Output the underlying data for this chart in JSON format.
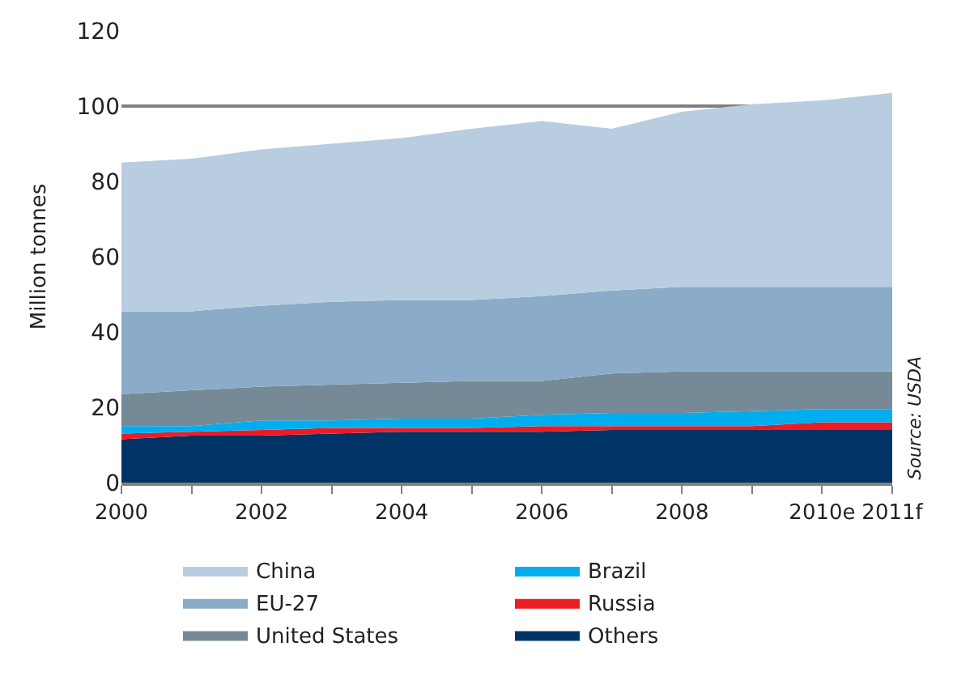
{
  "chart_data": {
    "type": "area",
    "stacked": true,
    "ylabel": "Million tonnes",
    "x": [
      2000,
      2001,
      2002,
      2003,
      2004,
      2005,
      2006,
      2007,
      2008,
      2009,
      2010,
      2011
    ],
    "series": [
      {
        "name": "Others",
        "color": "#003366",
        "values": [
          11.5,
          12.5,
          12.5,
          13,
          13.5,
          13.5,
          13.5,
          14,
          14,
          14,
          14,
          14
        ]
      },
      {
        "name": "Russia",
        "color": "#ed1c24",
        "values": [
          1.5,
          1,
          1.5,
          1.5,
          1,
          1,
          1.5,
          1,
          1,
          1,
          2,
          2
        ]
      },
      {
        "name": "Brazil",
        "color": "#00aeef",
        "values": [
          2,
          1.5,
          2.5,
          2,
          2.5,
          2.5,
          3,
          3.5,
          3.5,
          4,
          3.5,
          3.5
        ]
      },
      {
        "name": "United States",
        "color": "#758a96",
        "values": [
          8.5,
          9.5,
          9,
          9.5,
          9.5,
          10,
          9,
          10.5,
          11,
          10.5,
          10,
          10
        ]
      },
      {
        "name": "EU-27",
        "color": "#8aacc8",
        "values": [
          22,
          21,
          21.5,
          22,
          22,
          21.5,
          22.5,
          22,
          22.5,
          22.5,
          22.5,
          22.5
        ]
      },
      {
        "name": "China",
        "color": "#b9cde0",
        "values": [
          39.5,
          40.5,
          41.5,
          42,
          43,
          45.5,
          46.5,
          43,
          46.5,
          48.5,
          49.5,
          51.5
        ]
      }
    ],
    "xlim": [
      2000,
      2011
    ],
    "xticks": [
      2000,
      {
        "value": 2001,
        "label": null
      },
      2002,
      {
        "value": 2003,
        "label": null
      },
      2004,
      {
        "value": 2005,
        "label": null
      },
      2006,
      {
        "value": 2007,
        "label": null
      },
      2008,
      {
        "value": 2009,
        "label": null
      },
      {
        "value": 2010,
        "label": "2010e"
      },
      {
        "value": 2011,
        "label": "2011f"
      }
    ],
    "ylim": [
      0,
      120
    ],
    "yticks": [
      0,
      20,
      40,
      60,
      80,
      100,
      120
    ],
    "grid": "y",
    "legend": "bottom",
    "annotations": [
      "Source: USDA"
    ]
  }
}
